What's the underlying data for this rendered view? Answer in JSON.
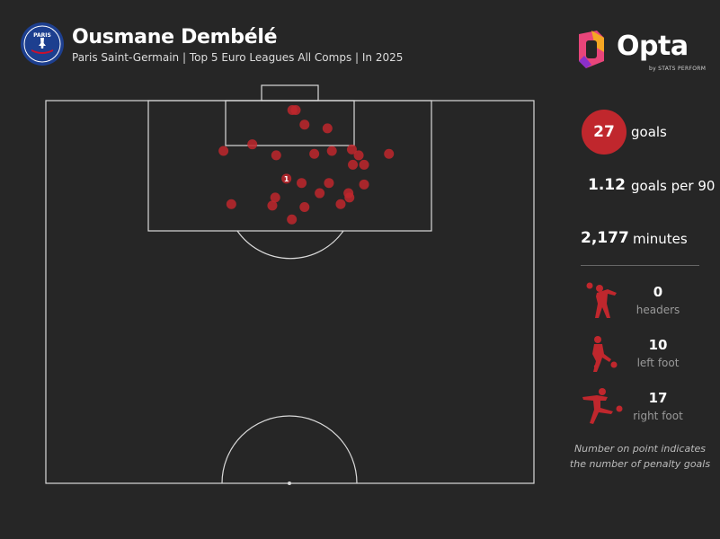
{
  "header": {
    "player_name": "Ousmane Dembélé",
    "subtitle": "Paris Saint-Germain | Top 5 Euro Leagues All Comps | In 2025",
    "crest_text": "PARIS"
  },
  "brand": {
    "name": "Opta",
    "sub": "by STATS PERFORM",
    "accent": "#c0272d",
    "logo_colors": [
      "#e8457a",
      "#f5a623",
      "#8b2fc9"
    ]
  },
  "stats": {
    "goals": {
      "value": "27",
      "label": "goals"
    },
    "goals_per_90": {
      "value": "1.12",
      "label": "goals per 90"
    },
    "minutes": {
      "value": "2,177",
      "label": "minutes"
    }
  },
  "goal_types": [
    {
      "value": "0",
      "label": "headers",
      "icon": "header-icon"
    },
    {
      "value": "10",
      "label": "left foot",
      "icon": "left-foot-icon"
    },
    {
      "value": "17",
      "label": "right foot",
      "icon": "right-foot-icon"
    }
  ],
  "footnote": {
    "line1": "Number on point indicates",
    "line2": "the number of penalty goals"
  },
  "chart_data": {
    "type": "scatter",
    "description_units": "pitch coordinates: x = 0 (left touchline) to 100 (right touchline), y = metres from goal line",
    "pitch": {
      "width_m": 68,
      "length_m": 52.5
    },
    "marker_color": "#c0272d",
    "shots": [
      {
        "x": 50.5,
        "y": 1.3
      },
      {
        "x": 51.2,
        "y": 1.3
      },
      {
        "x": 53.0,
        "y": 3.3
      },
      {
        "x": 57.7,
        "y": 3.8
      },
      {
        "x": 36.4,
        "y": 6.9
      },
      {
        "x": 42.3,
        "y": 6.0
      },
      {
        "x": 47.2,
        "y": 7.5
      },
      {
        "x": 55.0,
        "y": 7.3
      },
      {
        "x": 58.6,
        "y": 6.9
      },
      {
        "x": 62.7,
        "y": 6.7
      },
      {
        "x": 64.1,
        "y": 7.5
      },
      {
        "x": 70.3,
        "y": 7.3
      },
      {
        "x": 62.9,
        "y": 8.8
      },
      {
        "x": 65.2,
        "y": 8.8
      },
      {
        "x": 49.3,
        "y": 10.7,
        "penalties": 1
      },
      {
        "x": 52.4,
        "y": 11.3
      },
      {
        "x": 58.0,
        "y": 11.3
      },
      {
        "x": 65.2,
        "y": 11.5
      },
      {
        "x": 56.1,
        "y": 12.7
      },
      {
        "x": 62.0,
        "y": 12.7
      },
      {
        "x": 47.0,
        "y": 13.3
      },
      {
        "x": 62.2,
        "y": 13.3
      },
      {
        "x": 38.0,
        "y": 14.2
      },
      {
        "x": 46.4,
        "y": 14.4
      },
      {
        "x": 53.0,
        "y": 14.6
      },
      {
        "x": 60.4,
        "y": 14.2
      },
      {
        "x": 50.4,
        "y": 16.3
      }
    ]
  }
}
